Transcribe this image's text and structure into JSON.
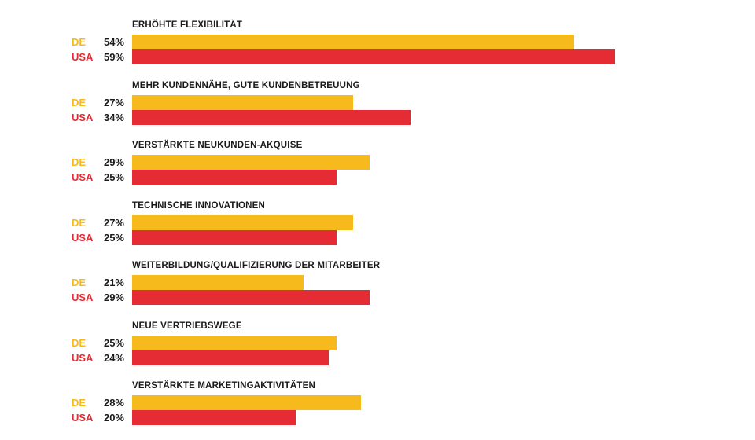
{
  "colors": {
    "DE": "#F7BA1D",
    "USA": "#E52C34",
    "text": "#1a1a1a"
  },
  "chart_data": {
    "type": "bar",
    "orientation": "horizontal",
    "categories": [
      "ERHÖHTE FLEXIBILITÄT",
      "MEHR KUNDENNÄHE, GUTE KUNDENBETREUUNG",
      "VERSTÄRKTE NEUKUNDEN-AKQUISE",
      "TECHNISCHE INNOVATIONEN",
      "WEITERBILDUNG/QUALIFIZIERUNG DER MITARBEITER",
      "NEUE VERTRIEBSWEGE",
      "VERSTÄRKTE MARKETINGAKTIVITÄTEN"
    ],
    "series": [
      {
        "name": "DE",
        "values": [
          54,
          27,
          29,
          27,
          21,
          25,
          28
        ],
        "labels": [
          "54%",
          "27%",
          "29%",
          "27%",
          "21%",
          "25%",
          "28%"
        ]
      },
      {
        "name": "USA",
        "values": [
          59,
          34,
          25,
          25,
          29,
          24,
          20
        ],
        "labels": [
          "59%",
          "34%",
          "25%",
          "25%",
          "29%",
          "24%",
          "20%"
        ]
      }
    ],
    "xlim": [
      0,
      100
    ],
    "unit": "%",
    "grid": false,
    "legend": "none"
  }
}
